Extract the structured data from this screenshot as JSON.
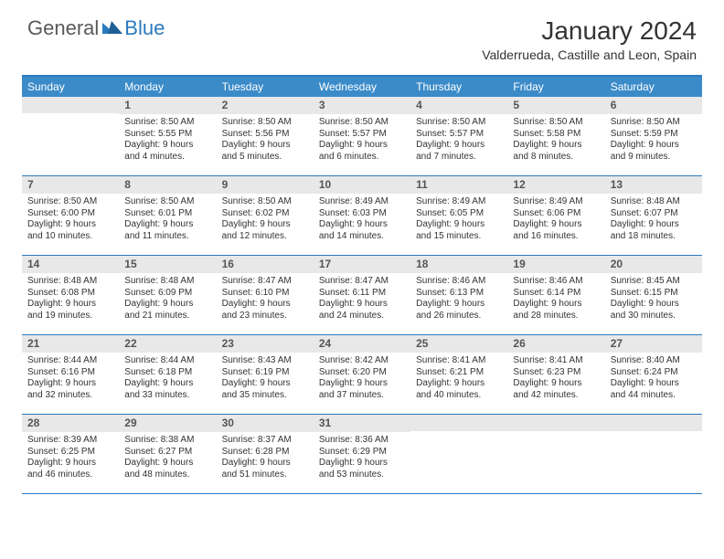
{
  "brand": {
    "part1": "General",
    "part2": "Blue"
  },
  "title": "January 2024",
  "location": "Valderrueda, Castille and Leon, Spain",
  "colors": {
    "header_bg": "#3b8bc9",
    "accent_border": "#2a7ac0",
    "daynum_bg": "#e8e8e8",
    "text": "#333333",
    "brand_gray": "#5a5a5a",
    "brand_blue": "#2a7ac0",
    "page_bg": "#ffffff"
  },
  "weekdays": [
    "Sunday",
    "Monday",
    "Tuesday",
    "Wednesday",
    "Thursday",
    "Friday",
    "Saturday"
  ],
  "weeks": [
    [
      {
        "num": "",
        "sunrise": "",
        "sunset": "",
        "daylight": ""
      },
      {
        "num": "1",
        "sunrise": "Sunrise: 8:50 AM",
        "sunset": "Sunset: 5:55 PM",
        "daylight": "Daylight: 9 hours and 4 minutes."
      },
      {
        "num": "2",
        "sunrise": "Sunrise: 8:50 AM",
        "sunset": "Sunset: 5:56 PM",
        "daylight": "Daylight: 9 hours and 5 minutes."
      },
      {
        "num": "3",
        "sunrise": "Sunrise: 8:50 AM",
        "sunset": "Sunset: 5:57 PM",
        "daylight": "Daylight: 9 hours and 6 minutes."
      },
      {
        "num": "4",
        "sunrise": "Sunrise: 8:50 AM",
        "sunset": "Sunset: 5:57 PM",
        "daylight": "Daylight: 9 hours and 7 minutes."
      },
      {
        "num": "5",
        "sunrise": "Sunrise: 8:50 AM",
        "sunset": "Sunset: 5:58 PM",
        "daylight": "Daylight: 9 hours and 8 minutes."
      },
      {
        "num": "6",
        "sunrise": "Sunrise: 8:50 AM",
        "sunset": "Sunset: 5:59 PM",
        "daylight": "Daylight: 9 hours and 9 minutes."
      }
    ],
    [
      {
        "num": "7",
        "sunrise": "Sunrise: 8:50 AM",
        "sunset": "Sunset: 6:00 PM",
        "daylight": "Daylight: 9 hours and 10 minutes."
      },
      {
        "num": "8",
        "sunrise": "Sunrise: 8:50 AM",
        "sunset": "Sunset: 6:01 PM",
        "daylight": "Daylight: 9 hours and 11 minutes."
      },
      {
        "num": "9",
        "sunrise": "Sunrise: 8:50 AM",
        "sunset": "Sunset: 6:02 PM",
        "daylight": "Daylight: 9 hours and 12 minutes."
      },
      {
        "num": "10",
        "sunrise": "Sunrise: 8:49 AM",
        "sunset": "Sunset: 6:03 PM",
        "daylight": "Daylight: 9 hours and 14 minutes."
      },
      {
        "num": "11",
        "sunrise": "Sunrise: 8:49 AM",
        "sunset": "Sunset: 6:05 PM",
        "daylight": "Daylight: 9 hours and 15 minutes."
      },
      {
        "num": "12",
        "sunrise": "Sunrise: 8:49 AM",
        "sunset": "Sunset: 6:06 PM",
        "daylight": "Daylight: 9 hours and 16 minutes."
      },
      {
        "num": "13",
        "sunrise": "Sunrise: 8:48 AM",
        "sunset": "Sunset: 6:07 PM",
        "daylight": "Daylight: 9 hours and 18 minutes."
      }
    ],
    [
      {
        "num": "14",
        "sunrise": "Sunrise: 8:48 AM",
        "sunset": "Sunset: 6:08 PM",
        "daylight": "Daylight: 9 hours and 19 minutes."
      },
      {
        "num": "15",
        "sunrise": "Sunrise: 8:48 AM",
        "sunset": "Sunset: 6:09 PM",
        "daylight": "Daylight: 9 hours and 21 minutes."
      },
      {
        "num": "16",
        "sunrise": "Sunrise: 8:47 AM",
        "sunset": "Sunset: 6:10 PM",
        "daylight": "Daylight: 9 hours and 23 minutes."
      },
      {
        "num": "17",
        "sunrise": "Sunrise: 8:47 AM",
        "sunset": "Sunset: 6:11 PM",
        "daylight": "Daylight: 9 hours and 24 minutes."
      },
      {
        "num": "18",
        "sunrise": "Sunrise: 8:46 AM",
        "sunset": "Sunset: 6:13 PM",
        "daylight": "Daylight: 9 hours and 26 minutes."
      },
      {
        "num": "19",
        "sunrise": "Sunrise: 8:46 AM",
        "sunset": "Sunset: 6:14 PM",
        "daylight": "Daylight: 9 hours and 28 minutes."
      },
      {
        "num": "20",
        "sunrise": "Sunrise: 8:45 AM",
        "sunset": "Sunset: 6:15 PM",
        "daylight": "Daylight: 9 hours and 30 minutes."
      }
    ],
    [
      {
        "num": "21",
        "sunrise": "Sunrise: 8:44 AM",
        "sunset": "Sunset: 6:16 PM",
        "daylight": "Daylight: 9 hours and 32 minutes."
      },
      {
        "num": "22",
        "sunrise": "Sunrise: 8:44 AM",
        "sunset": "Sunset: 6:18 PM",
        "daylight": "Daylight: 9 hours and 33 minutes."
      },
      {
        "num": "23",
        "sunrise": "Sunrise: 8:43 AM",
        "sunset": "Sunset: 6:19 PM",
        "daylight": "Daylight: 9 hours and 35 minutes."
      },
      {
        "num": "24",
        "sunrise": "Sunrise: 8:42 AM",
        "sunset": "Sunset: 6:20 PM",
        "daylight": "Daylight: 9 hours and 37 minutes."
      },
      {
        "num": "25",
        "sunrise": "Sunrise: 8:41 AM",
        "sunset": "Sunset: 6:21 PM",
        "daylight": "Daylight: 9 hours and 40 minutes."
      },
      {
        "num": "26",
        "sunrise": "Sunrise: 8:41 AM",
        "sunset": "Sunset: 6:23 PM",
        "daylight": "Daylight: 9 hours and 42 minutes."
      },
      {
        "num": "27",
        "sunrise": "Sunrise: 8:40 AM",
        "sunset": "Sunset: 6:24 PM",
        "daylight": "Daylight: 9 hours and 44 minutes."
      }
    ],
    [
      {
        "num": "28",
        "sunrise": "Sunrise: 8:39 AM",
        "sunset": "Sunset: 6:25 PM",
        "daylight": "Daylight: 9 hours and 46 minutes."
      },
      {
        "num": "29",
        "sunrise": "Sunrise: 8:38 AM",
        "sunset": "Sunset: 6:27 PM",
        "daylight": "Daylight: 9 hours and 48 minutes."
      },
      {
        "num": "30",
        "sunrise": "Sunrise: 8:37 AM",
        "sunset": "Sunset: 6:28 PM",
        "daylight": "Daylight: 9 hours and 51 minutes."
      },
      {
        "num": "31",
        "sunrise": "Sunrise: 8:36 AM",
        "sunset": "Sunset: 6:29 PM",
        "daylight": "Daylight: 9 hours and 53 minutes."
      },
      {
        "num": "",
        "sunrise": "",
        "sunset": "",
        "daylight": ""
      },
      {
        "num": "",
        "sunrise": "",
        "sunset": "",
        "daylight": ""
      },
      {
        "num": "",
        "sunrise": "",
        "sunset": "",
        "daylight": ""
      }
    ]
  ]
}
